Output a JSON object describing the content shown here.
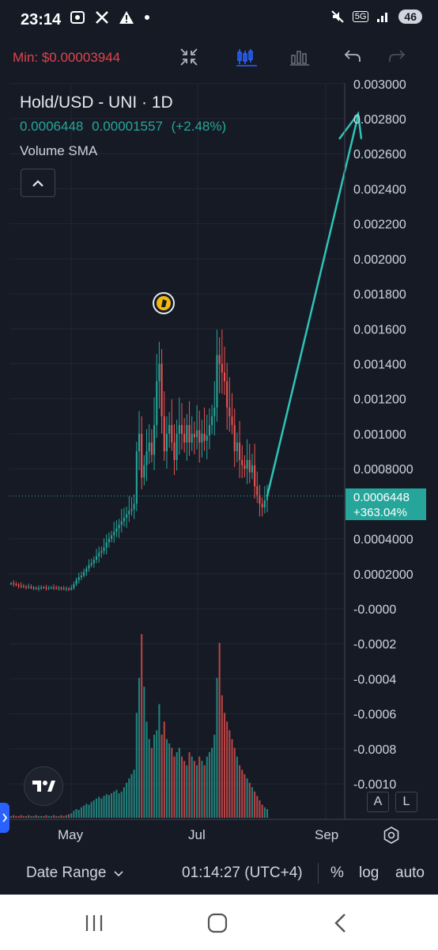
{
  "status_bar": {
    "time": "23:14",
    "left_icons": [
      "screenshot-icon",
      "x-logo-icon",
      "warning-icon",
      "dot-icon"
    ],
    "network": "5G",
    "battery": "46"
  },
  "toolbar": {
    "min_label": "Min: $0.00003944",
    "min_color": "#e0444d",
    "buttons": [
      "collapse-arrows-icon",
      "candles-icon",
      "bars-icon",
      "undo-icon",
      "redo-icon"
    ]
  },
  "legend": {
    "title": "Hold/USD - UNI · 1D",
    "last": "0.0006448",
    "change": "0.00001557",
    "change_pct": "(+2.48%)",
    "volume_label": "Volume SMA"
  },
  "price_tag": {
    "price": "0.0006448",
    "change": "+363.04%"
  },
  "scale_buttons": {
    "a": "A",
    "l": "L"
  },
  "date_axis": {
    "may": "May",
    "jul": "Jul",
    "sep": "Sep"
  },
  "bottom_bar": {
    "date_range": "Date Range",
    "time": "01:14:27 (UTC+4)",
    "percent": "%",
    "log": "log",
    "auto": "auto"
  },
  "colors": {
    "up": "#26a69a",
    "down": "#ef5350",
    "background": "#161a25",
    "arrow": "#2ec4b6"
  },
  "chart_data": {
    "type": "candlestick",
    "title": "Hold/USD - UNI · 1D",
    "y_ticks": [
      "0.003000",
      "0.002800",
      "0.002600",
      "0.002400",
      "0.002200",
      "0.002000",
      "0.001800",
      "0.001600",
      "0.001400",
      "0.001200",
      "0.001000",
      "0.0008000",
      "0.0006448",
      "0.0004000",
      "0.0002000",
      "-0.0000",
      "-0.0002",
      "-0.0004",
      "-0.0006",
      "-0.0008",
      "-0.0010"
    ],
    "ylim": [
      -0.001,
      0.003
    ],
    "x_ticks": [
      "May",
      "Jul",
      "Sep"
    ],
    "last_price": 0.0006448,
    "closes": [
      0.000145,
      0.00014,
      0.000138,
      0.000132,
      0.000128,
      0.000126,
      0.000124,
      0.000125,
      0.000118,
      0.00012,
      0.000115,
      0.000118,
      0.000122,
      0.00012,
      0.000117,
      0.000118,
      0.000121,
      0.000119,
      0.000118,
      0.00012,
      0.000115,
      0.000113,
      0.000116,
      0.00011,
      0.00012,
      0.00014,
      0.000165,
      0.00018,
      0.00019,
      0.00021,
      0.00023,
      0.00025,
      0.00026,
      0.00028,
      0.0003,
      0.00032,
      0.00033,
      0.00035,
      0.00038,
      0.0004,
      0.00042,
      0.00044,
      0.00046,
      0.00048,
      0.0005,
      0.00052,
      0.00054,
      0.00056,
      0.00057,
      0.0006,
      0.0009,
      0.001,
      0.00075,
      0.00082,
      0.0009,
      0.00095,
      0.00088,
      0.00105,
      0.0013,
      0.0014,
      0.0011,
      0.0009,
      0.001,
      0.00105,
      0.00095,
      0.00085,
      0.001,
      0.00105,
      0.001,
      0.00095,
      0.00105,
      0.00095,
      0.001,
      0.00098,
      0.00102,
      0.00095,
      0.001,
      0.00096,
      0.00099,
      0.00105,
      0.0011,
      0.00115,
      0.00145,
      0.0014,
      0.00135,
      0.0013,
      0.00115,
      0.0011,
      0.00105,
      0.0009,
      0.00095,
      0.00085,
      0.00082,
      0.0008,
      0.00085,
      0.00078,
      0.00082,
      0.0007,
      0.00065,
      0.0006,
      0.00058,
      0.00062,
      0.0006448
    ],
    "volumes": [
      2,
      3,
      2,
      2,
      3,
      2,
      2,
      3,
      2,
      2,
      3,
      2,
      2,
      2,
      3,
      2,
      2,
      3,
      2,
      2,
      3,
      2,
      3,
      4,
      5,
      8,
      10,
      9,
      12,
      14,
      16,
      15,
      18,
      20,
      22,
      24,
      22,
      25,
      27,
      26,
      28,
      30,
      32,
      28,
      30,
      35,
      40,
      45,
      50,
      55,
      120,
      160,
      210,
      150,
      110,
      90,
      80,
      95,
      100,
      130,
      95,
      110,
      90,
      85,
      80,
      70,
      75,
      80,
      70,
      65,
      60,
      75,
      70,
      65,
      60,
      70,
      65,
      60,
      70,
      75,
      80,
      95,
      160,
      200,
      140,
      120,
      110,
      100,
      90,
      80,
      70,
      60,
      55,
      50,
      45,
      40,
      35,
      30,
      25,
      20,
      15,
      12,
      10
    ],
    "projection": {
      "from": 0.0006448,
      "to": 0.00282
    }
  }
}
